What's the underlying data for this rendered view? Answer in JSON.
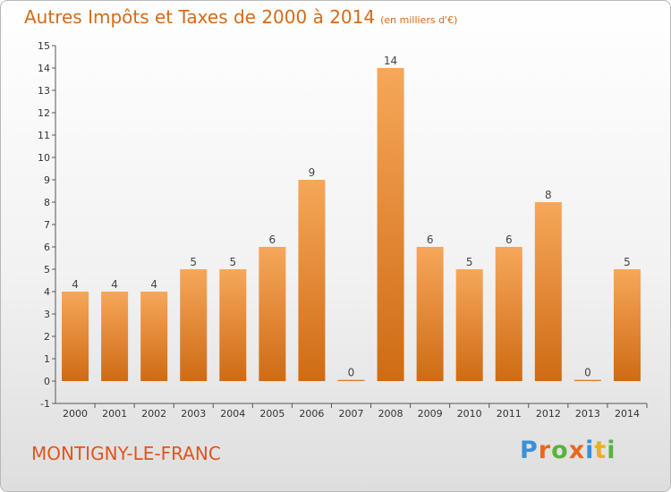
{
  "title": "Autres Impôts et Taxes de 2000 à 2014",
  "unit": "(en milliers d'€)",
  "town": "MONTIGNY-LE-FRANC",
  "logo": {
    "letters": [
      "P",
      "r",
      "o",
      "x",
      "i",
      "t",
      "i"
    ],
    "colors": [
      "#3a8fd8",
      "#e8681e",
      "#58b33e",
      "#e8681e",
      "#3a8fd8",
      "#e8b21e",
      "#58b33e"
    ]
  },
  "chart_data": {
    "type": "bar",
    "title": "Autres Impôts et Taxes de 2000 à 2014",
    "categories": [
      "2000",
      "2001",
      "2002",
      "2003",
      "2004",
      "2005",
      "2006",
      "2007",
      "2008",
      "2009",
      "2010",
      "2011",
      "2012",
      "2013",
      "2014"
    ],
    "values": [
      4,
      4,
      4,
      5,
      5,
      6,
      9,
      0,
      14,
      6,
      5,
      6,
      8,
      0,
      5
    ],
    "ylim": [
      -1,
      15
    ],
    "yticks": [
      -1,
      0,
      1,
      2,
      3,
      4,
      5,
      6,
      7,
      8,
      9,
      10,
      11,
      12,
      13,
      14,
      15
    ],
    "grid": false,
    "bar_color_top": "#f6a75a",
    "bar_color_bottom": "#cf6b14"
  }
}
